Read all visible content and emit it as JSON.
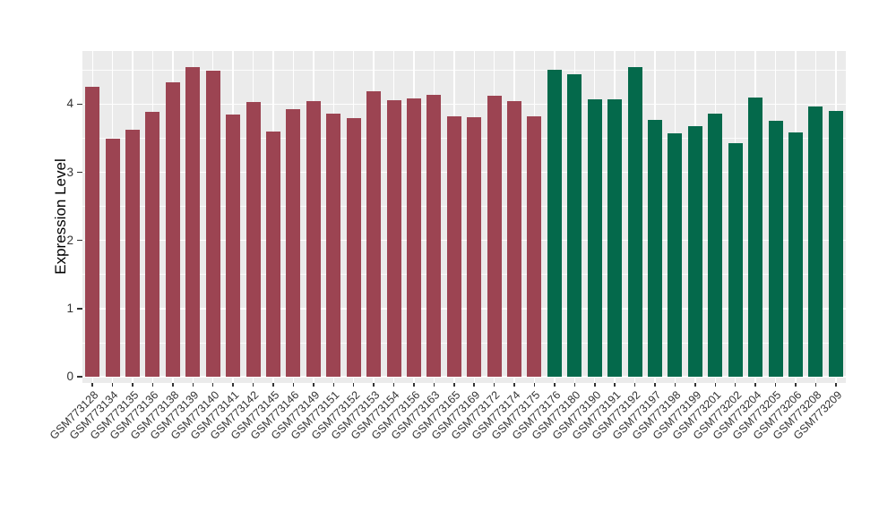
{
  "chart_data": {
    "type": "bar",
    "title": "",
    "xlabel": "",
    "ylabel": "Expression Level",
    "ylim": [
      0,
      4.78
    ],
    "yticks": [
      0,
      1,
      2,
      3,
      4
    ],
    "yticks_minor": [
      0.5,
      1.5,
      2.5,
      3.5,
      4.5
    ],
    "grid": "on",
    "legend_position": "none",
    "panel_bg": "#EBEBEB",
    "grid_color": "#FFFFFF",
    "axis_text_color": "#333333",
    "categories": [
      "GSM773128",
      "GSM773134",
      "GSM773135",
      "GSM773136",
      "GSM773138",
      "GSM773139",
      "GSM773140",
      "GSM773141",
      "GSM773142",
      "GSM773145",
      "GSM773146",
      "GSM773149",
      "GSM773151",
      "GSM773152",
      "GSM773153",
      "GSM773154",
      "GSM773156",
      "GSM773163",
      "GSM773165",
      "GSM773169",
      "GSM773172",
      "GSM773174",
      "GSM773175",
      "GSM773176",
      "GSM773180",
      "GSM773190",
      "GSM773191",
      "GSM773192",
      "GSM773197",
      "GSM773198",
      "GSM773199",
      "GSM773201",
      "GSM773202",
      "GSM773204",
      "GSM773205",
      "GSM773206",
      "GSM773208",
      "GSM773209"
    ],
    "values": [
      4.26,
      3.5,
      3.62,
      3.89,
      4.32,
      4.55,
      4.49,
      3.85,
      4.03,
      3.6,
      3.93,
      4.04,
      3.86,
      3.79,
      4.19,
      4.06,
      4.08,
      4.14,
      3.82,
      3.81,
      4.13,
      4.04,
      3.82,
      4.5,
      4.44,
      4.07,
      4.07,
      4.55,
      3.77,
      3.57,
      3.68,
      3.86,
      3.43,
      4.1,
      3.75,
      3.59,
      3.97,
      3.9
    ],
    "groups": [
      "g1",
      "g1",
      "g1",
      "g1",
      "g1",
      "g1",
      "g1",
      "g1",
      "g1",
      "g1",
      "g1",
      "g1",
      "g1",
      "g1",
      "g1",
      "g1",
      "g1",
      "g1",
      "g1",
      "g1",
      "g1",
      "g1",
      "g1",
      "g2",
      "g2",
      "g2",
      "g2",
      "g2",
      "g2",
      "g2",
      "g2",
      "g2",
      "g2",
      "g2",
      "g2",
      "g2",
      "g2",
      "g2"
    ],
    "group_colors": {
      "g1": "#9C4452",
      "g2": "#04694B"
    }
  }
}
